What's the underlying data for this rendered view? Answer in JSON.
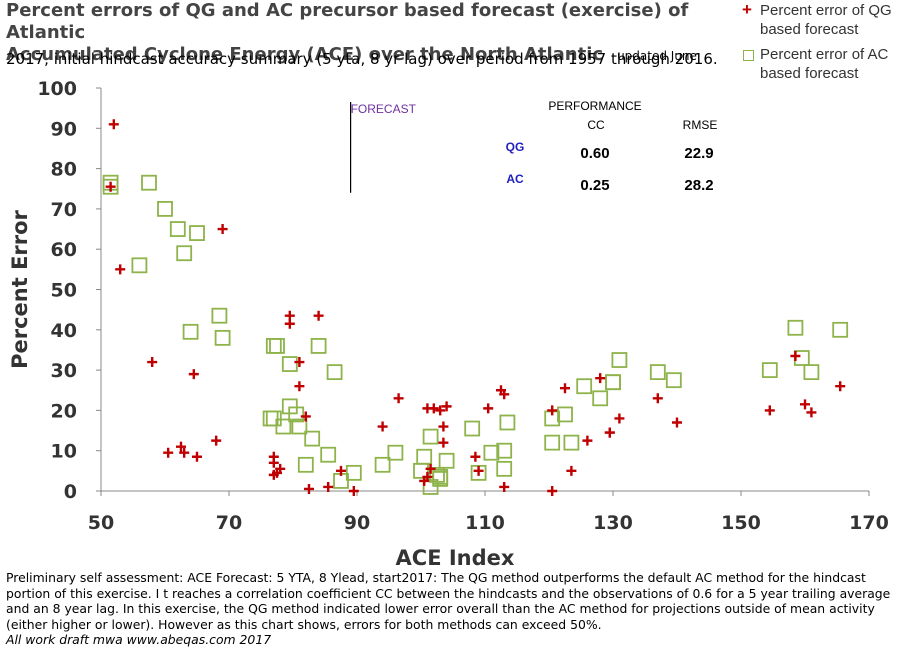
{
  "title": {
    "line1": "Percent errors of QG and AC precursor based forecast (exercise) of Atlantic",
    "line2": "Accumulated Cyclone Energy (ACE) over the North Atlantic",
    "updated": "updated June",
    "subtitle": "2017, initial hindcast accuracy summary (5 yta, 8 yr lag) over period from 1957 through 2016."
  },
  "legend": {
    "qg": "Percent error of QG based forecast",
    "ac": "Percent error of AC based forecast"
  },
  "annotations": {
    "forecast": "FORECAST",
    "performance": "PERFORMANCE",
    "cc_header": "CC",
    "rmse_header": "RMSE",
    "rows": [
      {
        "method": "QG",
        "cc": "0.60",
        "rmse": "22.9"
      },
      {
        "method": "AC",
        "cc": "0.25",
        "rmse": "28.2"
      }
    ]
  },
  "footer": {
    "text": "Preliminary self assessment: ACE Forecast: 5 YTA, 8 Ylead, start2017: The QG method outperforms the default AC method for the hindcast portion of this exercise. I t reaches a correlation coefficient CC between the hindcasts and the observations of 0.6 for a 5 year trailing average and an 8 year lag. In this exercise, the QG method indicated lower error overall than the AC method for projections outside of mean activity (either higher or lower). However as this chart shows, errors for both methods can exceed 50%.",
    "credit": "All work draft mwa www.abeqas.com 2017"
  },
  "colors": {
    "qg": "#c00000",
    "ac": "#8db34a",
    "forecast_line": "#000000",
    "method_label": "#1f1fbf",
    "forecast_label": "#7030a0"
  },
  "chart_data": {
    "type": "scatter",
    "xlabel": "ACE Index",
    "ylabel": "Percent Error",
    "xlim": [
      50,
      170
    ],
    "ylim": [
      0,
      100
    ],
    "xticks": [
      50,
      70,
      90,
      110,
      130,
      150,
      170
    ],
    "yticks": [
      0,
      10,
      20,
      30,
      40,
      50,
      60,
      70,
      80,
      90,
      100
    ],
    "forecast_x": 89,
    "series": [
      {
        "name": "Percent error of QG based forecast",
        "marker": "plus",
        "points": [
          [
            51.5,
            75.5
          ],
          [
            52,
            91
          ],
          [
            53,
            55
          ],
          [
            58,
            32
          ],
          [
            60.5,
            9.5
          ],
          [
            62.5,
            11
          ],
          [
            63,
            9.5
          ],
          [
            64.5,
            29
          ],
          [
            65,
            8.5
          ],
          [
            68,
            12.5
          ],
          [
            69,
            65
          ],
          [
            77,
            7
          ],
          [
            77,
            8.5
          ],
          [
            77,
            4
          ],
          [
            77.5,
            4.5
          ],
          [
            78,
            5.5
          ],
          [
            79.5,
            43.5
          ],
          [
            79.5,
            41.5
          ],
          [
            81,
            32
          ],
          [
            81,
            26
          ],
          [
            82,
            18.5
          ],
          [
            82.5,
            0.5
          ],
          [
            84,
            43.5
          ],
          [
            85.5,
            1
          ],
          [
            87.5,
            5
          ],
          [
            89.5,
            0
          ],
          [
            94,
            16
          ],
          [
            96.5,
            23
          ],
          [
            100.5,
            2.5
          ],
          [
            101,
            3.5
          ],
          [
            101,
            20.5
          ],
          [
            101.5,
            5.5
          ],
          [
            102,
            20.5
          ],
          [
            103,
            20
          ],
          [
            103.5,
            12
          ],
          [
            103.5,
            16
          ],
          [
            104,
            21
          ],
          [
            108.5,
            8.5
          ],
          [
            109,
            5
          ],
          [
            110.5,
            20.5
          ],
          [
            112.5,
            25
          ],
          [
            113,
            1
          ],
          [
            113,
            24
          ],
          [
            120.5,
            20
          ],
          [
            120.5,
            0
          ],
          [
            122.5,
            25.5
          ],
          [
            123.5,
            5
          ],
          [
            126,
            12.5
          ],
          [
            128,
            28
          ],
          [
            129.5,
            14.5
          ],
          [
            129.5,
            14.5
          ],
          [
            131,
            18
          ],
          [
            137,
            23
          ],
          [
            140,
            17
          ],
          [
            154.5,
            20
          ],
          [
            158.5,
            33.5
          ],
          [
            160,
            21.5
          ],
          [
            161,
            19.5
          ],
          [
            165.5,
            26
          ]
        ]
      },
      {
        "name": "Percent error of AC based forecast",
        "marker": "square",
        "points": [
          [
            51.5,
            75.5
          ],
          [
            51.5,
            76.5
          ],
          [
            56,
            56
          ],
          [
            57.5,
            76.5
          ],
          [
            60,
            70
          ],
          [
            62,
            65
          ],
          [
            63,
            59
          ],
          [
            64,
            39.5
          ],
          [
            65,
            64
          ],
          [
            68.5,
            43.5
          ],
          [
            69,
            38
          ],
          [
            76.5,
            18
          ],
          [
            77,
            36
          ],
          [
            77,
            18
          ],
          [
            77.5,
            36
          ],
          [
            78.5,
            16
          ],
          [
            79.5,
            31.5
          ],
          [
            79.5,
            21
          ],
          [
            80.5,
            19
          ],
          [
            81,
            16
          ],
          [
            82,
            6.5
          ],
          [
            83,
            13
          ],
          [
            84,
            36
          ],
          [
            85.5,
            9
          ],
          [
            86.5,
            29.5
          ],
          [
            87.5,
            2.5
          ],
          [
            89.5,
            4.5
          ],
          [
            94,
            6.5
          ],
          [
            96,
            9.5
          ],
          [
            100,
            5
          ],
          [
            100.5,
            8.5
          ],
          [
            101.5,
            1
          ],
          [
            101.5,
            13.5
          ],
          [
            102.5,
            4
          ],
          [
            103,
            3
          ],
          [
            103,
            3.5
          ],
          [
            104,
            7.5
          ],
          [
            108,
            15.5
          ],
          [
            109,
            4.5
          ],
          [
            111,
            9.5
          ],
          [
            113,
            10
          ],
          [
            113,
            5.5
          ],
          [
            113.5,
            17
          ],
          [
            120.5,
            18
          ],
          [
            120.5,
            12
          ],
          [
            122.5,
            19
          ],
          [
            123.5,
            12
          ],
          [
            125.5,
            26
          ],
          [
            128,
            23
          ],
          [
            130,
            27
          ],
          [
            130,
            27
          ],
          [
            131,
            32.5
          ],
          [
            137,
            29.5
          ],
          [
            139.5,
            27.5
          ],
          [
            154.5,
            30
          ],
          [
            158.5,
            40.5
          ],
          [
            159.5,
            33
          ],
          [
            161,
            29.5
          ],
          [
            165.5,
            40
          ]
        ]
      }
    ]
  }
}
